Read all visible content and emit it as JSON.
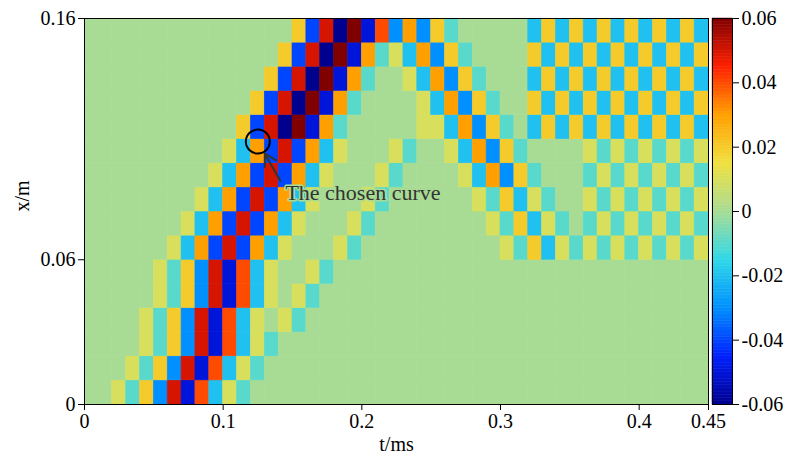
{
  "chart_data": {
    "type": "heatmap",
    "xlabel": "t/ms",
    "ylabel": "x/m",
    "xlim": [
      0,
      0.45
    ],
    "xticks": [
      0,
      0.1,
      0.2,
      0.3,
      0.4,
      0.45
    ],
    "ylim": [
      0,
      0.16
    ],
    "yticks": [
      0,
      0.06,
      0.16
    ],
    "cells": {
      "x_bins": [
        0,
        0.01,
        0.02,
        0.03,
        0.04,
        0.05,
        0.06,
        0.07,
        0.08,
        0.09,
        0.1,
        0.11,
        0.12,
        0.13,
        0.14,
        0.15,
        0.16,
        0.17,
        0.18,
        0.19,
        0.2,
        0.21,
        0.22,
        0.23,
        0.24,
        0.25,
        0.26,
        0.27,
        0.28,
        0.29,
        0.3,
        0.31,
        0.32,
        0.33,
        0.34,
        0.35,
        0.36,
        0.37,
        0.38,
        0.39,
        0.4,
        0.41,
        0.42,
        0.43,
        0.44,
        0.45
      ],
      "y_bins": [
        0,
        0.01,
        0.02,
        0.03,
        0.04,
        0.05,
        0.06,
        0.07,
        0.08,
        0.09,
        0.1,
        0.11,
        0.12,
        0.13,
        0.14,
        0.15,
        0.16
      ],
      "values": [
        [
          0,
          0,
          0.01,
          -0.01,
          0.02,
          -0.03,
          0.05,
          -0.05,
          0.04,
          -0.02,
          0.01,
          -0.01,
          0,
          0,
          0,
          0,
          0,
          0,
          0,
          0,
          0,
          0,
          0,
          0,
          0,
          0,
          0,
          0,
          0,
          0,
          0,
          0,
          0,
          0,
          0,
          0,
          0,
          0,
          0,
          0,
          0,
          0,
          0,
          0,
          0
        ],
        [
          0,
          0,
          0,
          0.01,
          -0.01,
          0.02,
          -0.03,
          0.05,
          -0.05,
          0.04,
          -0.02,
          0.01,
          -0.01,
          0,
          0,
          0,
          0,
          0,
          0,
          0,
          0,
          0,
          0,
          0,
          0,
          0,
          0,
          0,
          0,
          0,
          0,
          0,
          0,
          0,
          0,
          0,
          0,
          0,
          0,
          0,
          0,
          0,
          0,
          0,
          0
        ],
        [
          0,
          0,
          0,
          0,
          0.01,
          -0.01,
          0.02,
          -0.03,
          0.05,
          -0.05,
          0.04,
          -0.02,
          0.01,
          -0.01,
          0,
          0,
          0,
          0,
          0,
          0,
          0,
          0,
          0,
          0,
          0,
          0,
          0,
          0,
          0,
          0,
          0,
          0,
          0,
          0,
          0,
          0,
          0,
          0,
          0,
          0,
          0,
          0,
          0,
          0,
          0
        ],
        [
          0,
          0,
          0,
          0,
          0.01,
          -0.01,
          0.02,
          -0.03,
          0.05,
          -0.05,
          0.04,
          -0.02,
          0.01,
          0,
          0.01,
          -0.01,
          0,
          0,
          0,
          0,
          0,
          0,
          0,
          0,
          0,
          0,
          0,
          0,
          0,
          0,
          0,
          0,
          0,
          0,
          0,
          0,
          0,
          0,
          0,
          0,
          0,
          0,
          0,
          0,
          0
        ],
        [
          0,
          0,
          0,
          0,
          0,
          0.01,
          -0.01,
          0.02,
          -0.03,
          0.05,
          -0.05,
          0.04,
          -0.02,
          0.01,
          0,
          0.01,
          -0.01,
          0,
          0,
          0,
          0,
          0,
          0,
          0,
          0,
          0,
          0,
          0,
          0,
          0,
          0,
          0,
          0,
          0,
          0,
          0,
          0,
          0,
          0,
          0,
          0,
          0,
          0,
          0,
          0
        ],
        [
          0,
          0,
          0,
          0,
          0,
          0.01,
          -0.01,
          0.02,
          -0.03,
          0.05,
          -0.05,
          0.04,
          -0.02,
          0.01,
          0,
          0,
          0.01,
          -0.01,
          0,
          0,
          0,
          0,
          0,
          0,
          0,
          0,
          0,
          0,
          0,
          0,
          0,
          0,
          0,
          0,
          0,
          0,
          0,
          0,
          0,
          0,
          0,
          0,
          0,
          0,
          0
        ],
        [
          0,
          0,
          0,
          0,
          0,
          0,
          0.01,
          -0.02,
          0.03,
          -0.04,
          0.05,
          -0.04,
          0.03,
          -0.02,
          0.01,
          0,
          0,
          0,
          0.01,
          -0.01,
          0,
          0,
          0,
          0,
          0,
          0,
          0,
          0,
          0,
          0,
          0.01,
          -0.01,
          0.02,
          -0.02,
          0.01,
          -0.01,
          0.01,
          -0.01,
          0.01,
          -0.01,
          0.01,
          -0.01,
          0.01,
          -0.01,
          0.01
        ],
        [
          0,
          0,
          0,
          0,
          0,
          0,
          0,
          0.01,
          -0.02,
          0.03,
          -0.04,
          0.05,
          -0.04,
          0.03,
          -0.02,
          0.01,
          0,
          0,
          0,
          0.01,
          -0.01,
          0,
          0,
          0,
          0,
          0,
          0,
          0,
          0,
          0.01,
          -0.01,
          0.02,
          -0.02,
          0.01,
          -0.01,
          0,
          -0.01,
          0.01,
          -0.01,
          0.01,
          -0.01,
          0.01,
          -0.01,
          0.01,
          -0.01
        ],
        [
          0,
          0,
          0,
          0,
          0,
          0,
          0,
          0,
          0.01,
          -0.02,
          0.03,
          -0.04,
          0.05,
          -0.04,
          0.03,
          -0.02,
          0.01,
          0,
          0,
          0,
          0.01,
          -0.01,
          0,
          0,
          0,
          0,
          0,
          0,
          0.01,
          -0.01,
          0.02,
          -0.02,
          0.01,
          -0.01,
          0,
          0,
          0.01,
          -0.01,
          0.01,
          -0.01,
          0.01,
          -0.01,
          0.01,
          -0.01,
          0.01
        ],
        [
          0,
          0,
          0,
          0,
          0,
          0,
          0,
          0,
          0,
          0.01,
          -0.02,
          0.03,
          -0.04,
          0.05,
          -0.04,
          0.03,
          -0.02,
          0.01,
          0,
          0,
          0,
          0.01,
          -0.01,
          0,
          0,
          0,
          0,
          0.01,
          -0.02,
          0.03,
          -0.03,
          0.02,
          -0.01,
          0,
          0,
          0,
          -0.01,
          0.01,
          -0.01,
          0.01,
          -0.01,
          0.01,
          -0.01,
          0.01,
          -0.01
        ],
        [
          0,
          0,
          0,
          0,
          0,
          0,
          0,
          0,
          0,
          0,
          0.01,
          -0.02,
          0.03,
          -0.04,
          0.05,
          -0.04,
          0.03,
          -0.02,
          0.01,
          0,
          0,
          0,
          0.01,
          -0.01,
          0,
          0,
          0.01,
          -0.02,
          0.03,
          -0.03,
          0.02,
          -0.01,
          0,
          0,
          0,
          0,
          0.01,
          -0.01,
          0.01,
          -0.01,
          0.01,
          -0.01,
          0.01,
          -0.01,
          0.01
        ],
        [
          0,
          0,
          0,
          0,
          0,
          0,
          0,
          0,
          0,
          0,
          0,
          0.02,
          -0.04,
          0.05,
          -0.06,
          0.06,
          -0.05,
          0.03,
          -0.01,
          0,
          0,
          0,
          0,
          0,
          0.01,
          0.01,
          -0.02,
          0.03,
          -0.03,
          0.02,
          -0.01,
          0,
          -0.02,
          0.02,
          -0.02,
          0.02,
          -0.02,
          0.02,
          -0.02,
          0.02,
          -0.02,
          0.02,
          -0.02,
          0.02,
          -0.02
        ],
        [
          0,
          0,
          0,
          0,
          0,
          0,
          0,
          0,
          0,
          0,
          0,
          0,
          0.02,
          -0.04,
          0.05,
          -0.06,
          0.06,
          -0.05,
          0.03,
          -0.01,
          0,
          0,
          0,
          0,
          0.01,
          -0.02,
          0.03,
          -0.03,
          0.02,
          -0.01,
          0,
          0,
          0.02,
          -0.02,
          0.02,
          -0.02,
          0.02,
          -0.02,
          0.02,
          -0.02,
          0.02,
          -0.02,
          0.02,
          -0.02,
          0.02
        ],
        [
          0,
          0,
          0,
          0,
          0,
          0,
          0,
          0,
          0,
          0,
          0,
          0,
          0,
          0.02,
          -0.04,
          0.05,
          -0.06,
          0.06,
          -0.05,
          0.03,
          -0.01,
          0,
          0,
          0.01,
          -0.02,
          0.03,
          -0.03,
          0.02,
          -0.01,
          0,
          0,
          0,
          -0.02,
          0.02,
          -0.02,
          0.02,
          -0.02,
          0.02,
          -0.02,
          0.02,
          -0.02,
          0.02,
          -0.02,
          0.02,
          -0.02
        ],
        [
          0,
          0,
          0,
          0,
          0,
          0,
          0,
          0,
          0,
          0,
          0,
          0,
          0,
          0,
          0.02,
          -0.04,
          0.05,
          -0.06,
          0.06,
          -0.05,
          0.03,
          -0.01,
          0.01,
          -0.02,
          0.03,
          -0.03,
          0.02,
          -0.01,
          0,
          0,
          0,
          0,
          0.02,
          -0.02,
          0.02,
          -0.02,
          0.02,
          -0.02,
          0.02,
          -0.02,
          0.02,
          -0.02,
          0.02,
          -0.02,
          0.02
        ],
        [
          0,
          0,
          0,
          0,
          0,
          0,
          0,
          0,
          0,
          0,
          0,
          0,
          0,
          0,
          0,
          0.02,
          -0.04,
          0.05,
          -0.06,
          0.06,
          -0.05,
          0.04,
          -0.03,
          0.03,
          -0.03,
          0.02,
          -0.01,
          0,
          0,
          0,
          0,
          0,
          -0.02,
          0.02,
          -0.02,
          0.02,
          -0.02,
          0.02,
          -0.02,
          0.02,
          -0.02,
          0.02,
          -0.02,
          0.02,
          -0.02
        ]
      ]
    },
    "colorbar": {
      "range": [
        -0.06,
        0.06
      ],
      "ticks": [
        -0.06,
        -0.04,
        -0.02,
        0,
        0.02,
        0.04,
        0.06
      ]
    },
    "annotations": [
      {
        "text": "The chosen curve",
        "x": 0.142,
        "y": 0.092,
        "point": [
          0.125,
          0.109
        ]
      }
    ]
  }
}
